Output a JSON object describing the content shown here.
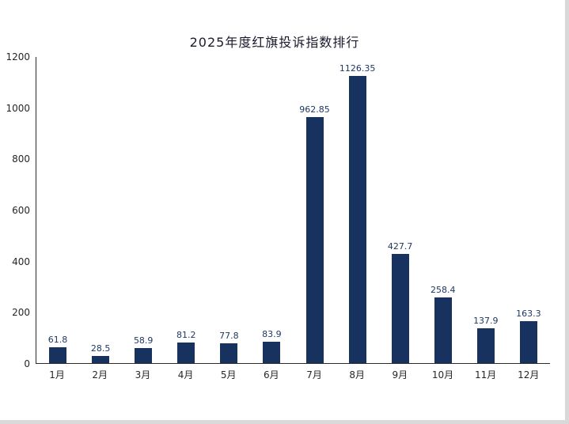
{
  "title": "2025年度红旗投诉指数排行",
  "colors": {
    "bar": "#17325f",
    "value_label": "#1f3864",
    "axis": "#2b2b2b",
    "edge_strip": "#d9d9d9"
  },
  "chart_data": {
    "type": "bar",
    "title": "2025年度红旗投诉指数排行",
    "categories": [
      "1月",
      "2月",
      "3月",
      "4月",
      "5月",
      "6月",
      "7月",
      "8月",
      "9月",
      "10月",
      "11月",
      "12月"
    ],
    "values": [
      61.8,
      28.5,
      58.9,
      81.2,
      77.8,
      83.9,
      962.85,
      1126.35,
      427.7,
      258.4,
      137.9,
      163.3
    ],
    "value_labels": [
      "61.8",
      "28.5",
      "58.9",
      "81.2",
      "77.8",
      "83.9",
      "962.85",
      "1126.35",
      "427.7",
      "258.4",
      "137.9",
      "163.3"
    ],
    "xlabel": "",
    "ylabel": "",
    "ylim": [
      0,
      1200
    ],
    "yticks": [
      0,
      200,
      400,
      600,
      800,
      1000,
      1200
    ],
    "grid": false,
    "legend_position": "none",
    "bar_color": "#17325f"
  }
}
